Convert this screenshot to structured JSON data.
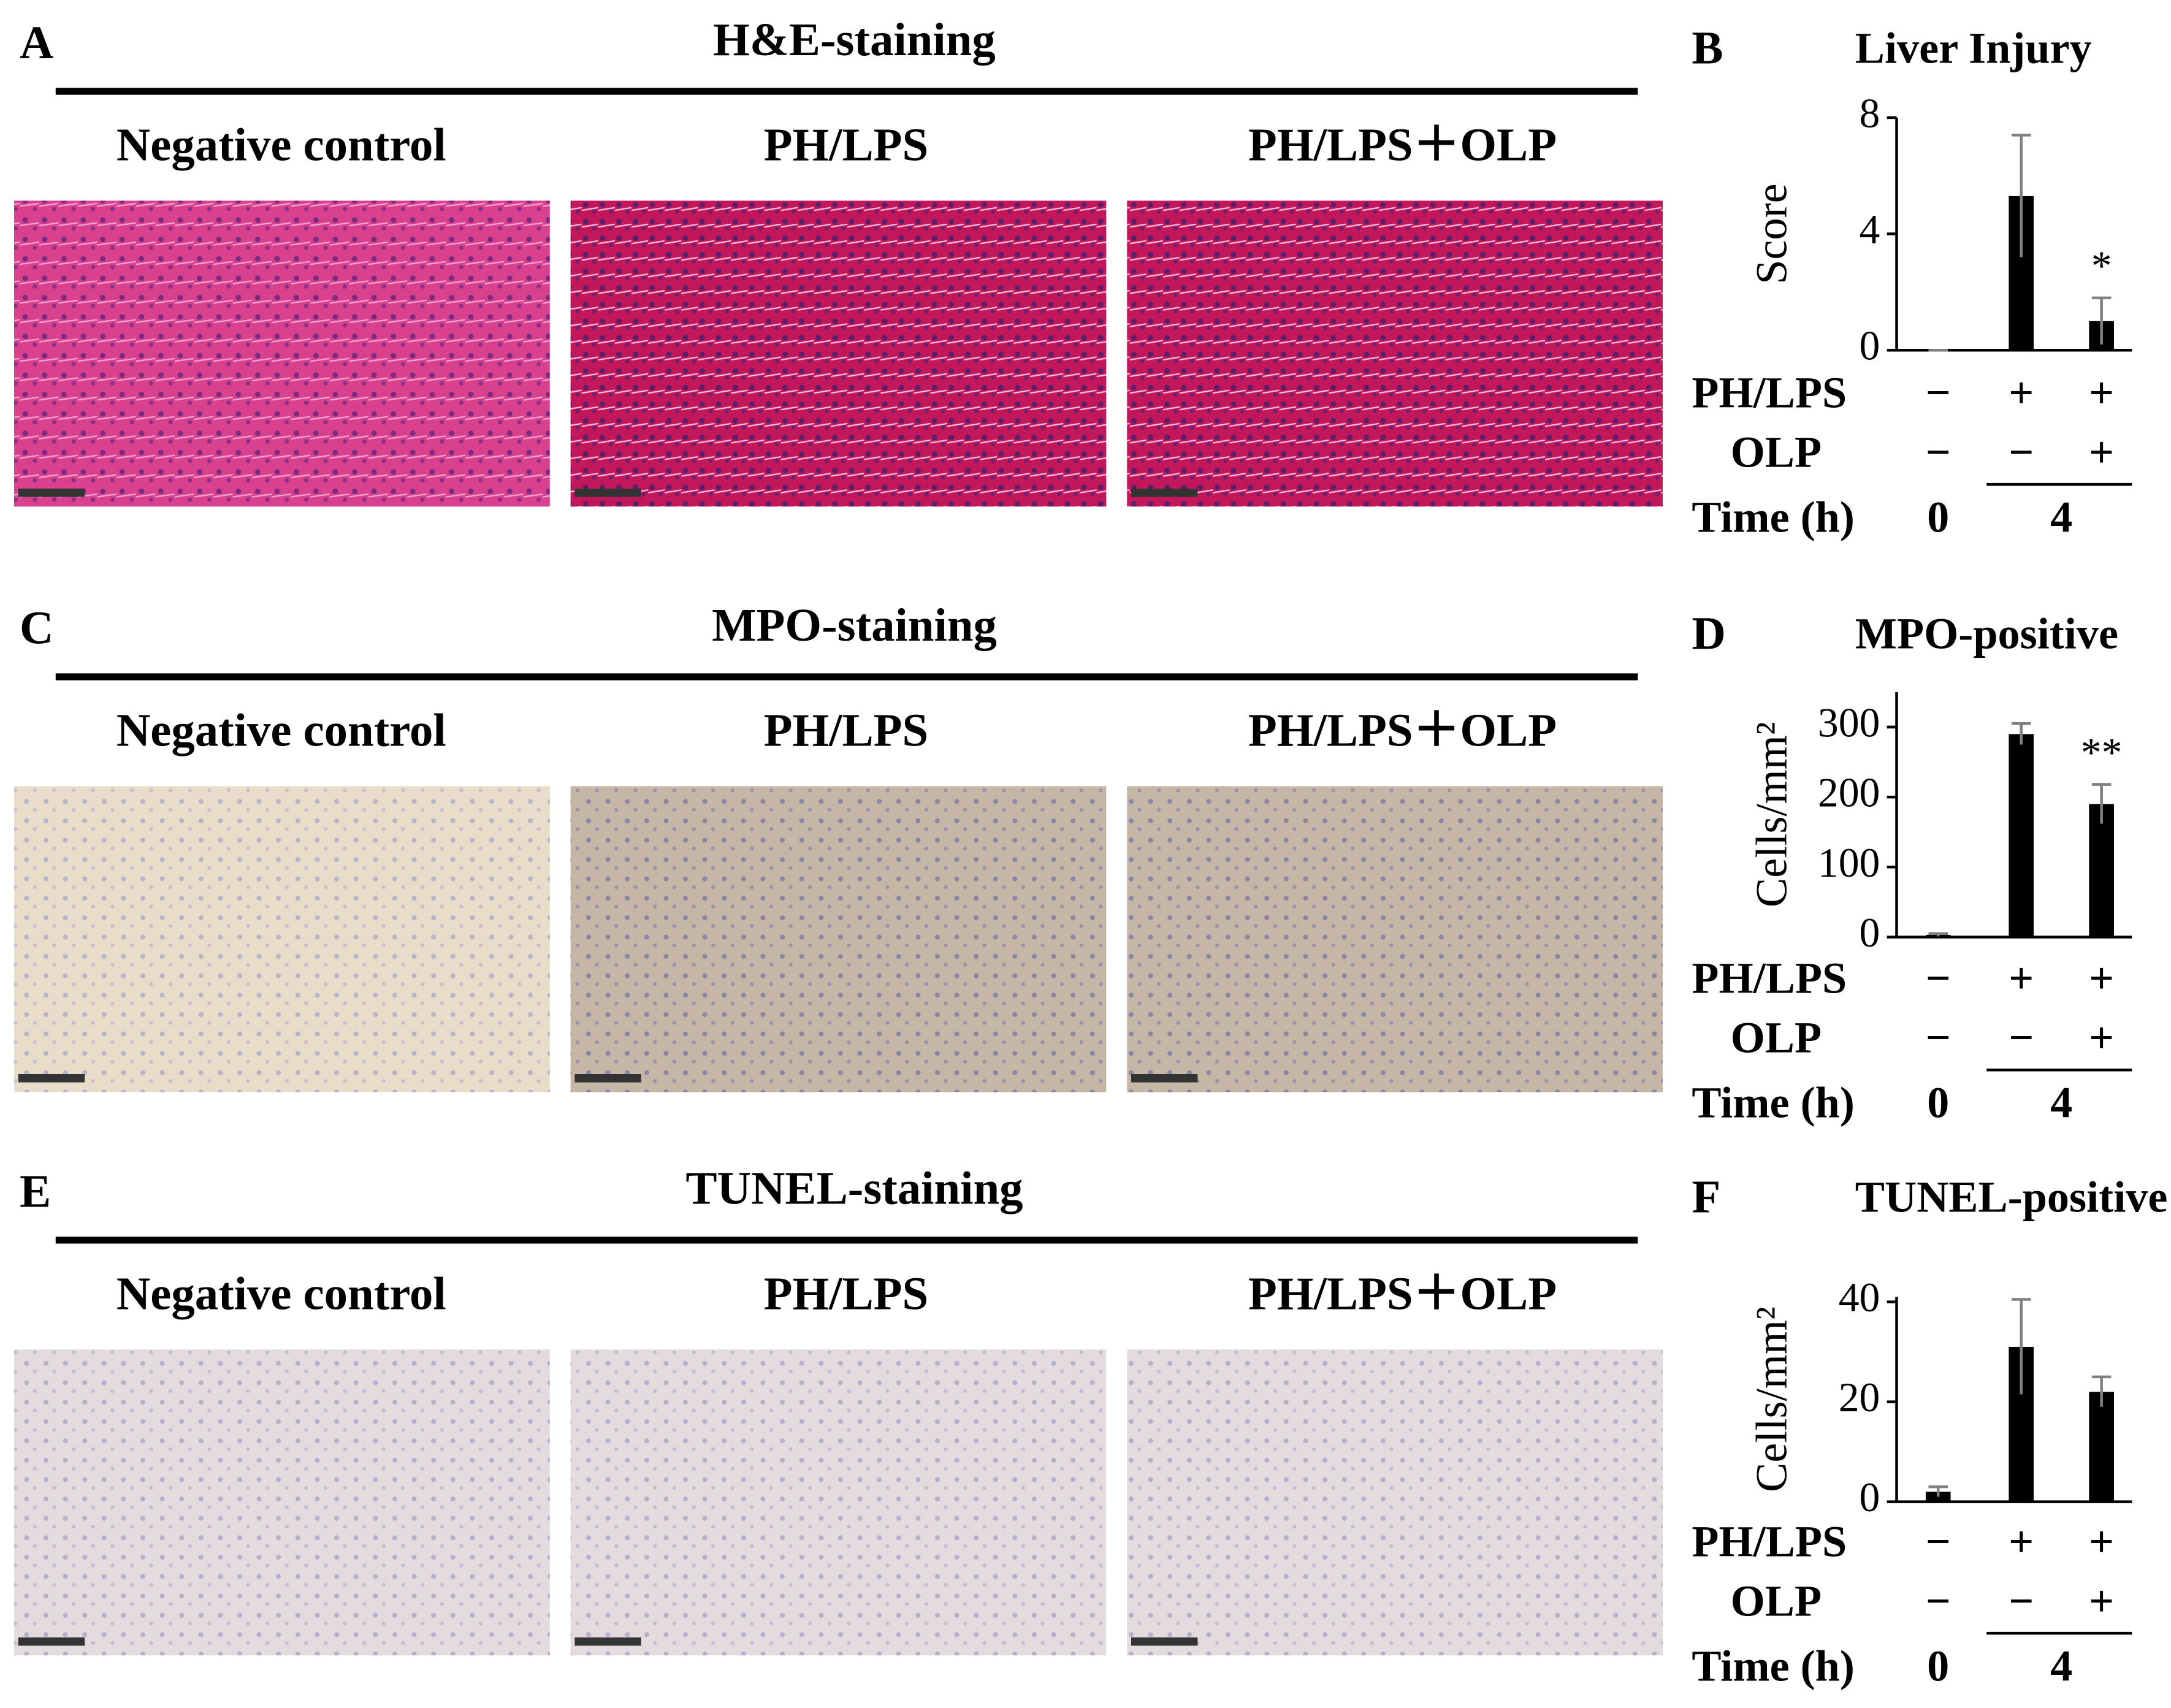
{
  "panels": [
    {
      "label": "A",
      "title": "H&E-staining",
      "images": [
        "Negative control",
        "PH/LPS",
        "PH/LPS＋OLP"
      ]
    },
    {
      "label": "C",
      "title": "MPO-staining",
      "images": [
        "Negative control",
        "PH/LPS",
        "PH/LPS＋OLP"
      ]
    },
    {
      "label": "E",
      "title": "TUNEL-staining",
      "images": [
        "Negative control",
        "PH/LPS",
        "PH/LPS＋OLP"
      ]
    }
  ],
  "chart_data": [
    {
      "type": "bar",
      "label": "B",
      "title": "Liver Injury",
      "ylabel": "Score",
      "values": [
        0,
        5.3,
        1.0
      ],
      "errors": [
        0,
        2.1,
        0.8
      ],
      "annotations": [
        null,
        null,
        "*"
      ],
      "color": "#000000",
      "error_color": "#808080",
      "ylim": [
        0,
        8
      ],
      "yticks": [
        0,
        4,
        8
      ],
      "table": {
        "rows": [
          {
            "label": "PH/LPS",
            "cells": [
              "−",
              "+",
              "+"
            ]
          },
          {
            "label": "OLP",
            "cells": [
              "−",
              "−",
              "+"
            ]
          }
        ],
        "time": {
          "label": "Time (h)",
          "cells": [
            "0",
            "4"
          ]
        }
      }
    },
    {
      "type": "bar",
      "label": "D",
      "title": "MPO-positive",
      "ylabel": "Cells/mm²",
      "values": [
        3,
        290,
        190
      ],
      "errors": [
        2,
        15,
        28
      ],
      "annotations": [
        null,
        null,
        "**"
      ],
      "color": "#000000",
      "error_color": "#808080",
      "ylim": [
        0,
        350
      ],
      "yticks": [
        0,
        100,
        200,
        300
      ],
      "table": {
        "rows": [
          {
            "label": "PH/LPS",
            "cells": [
              "−",
              "+",
              "+"
            ]
          },
          {
            "label": "OLP",
            "cells": [
              "−",
              "−",
              "+"
            ]
          }
        ],
        "time": {
          "label": "Time (h)",
          "cells": [
            "0",
            "4"
          ]
        }
      }
    },
    {
      "type": "bar",
      "label": "F",
      "title": "TUNEL-positive",
      "ylabel": "Cells/mm²",
      "values": [
        2,
        31,
        22
      ],
      "errors": [
        1,
        9.5,
        3
      ],
      "annotations": [
        null,
        null,
        null
      ],
      "color": "#000000",
      "error_color": "#808080",
      "ylim": [
        0,
        41
      ],
      "yticks": [
        0,
        20,
        40
      ],
      "table": {
        "rows": [
          {
            "label": "PH/LPS",
            "cells": [
              "−",
              "+",
              "+"
            ]
          },
          {
            "label": "OLP",
            "cells": [
              "−",
              "−",
              "+"
            ]
          }
        ],
        "time": {
          "label": "Time (h)",
          "cells": [
            "0",
            "4"
          ]
        }
      }
    }
  ]
}
